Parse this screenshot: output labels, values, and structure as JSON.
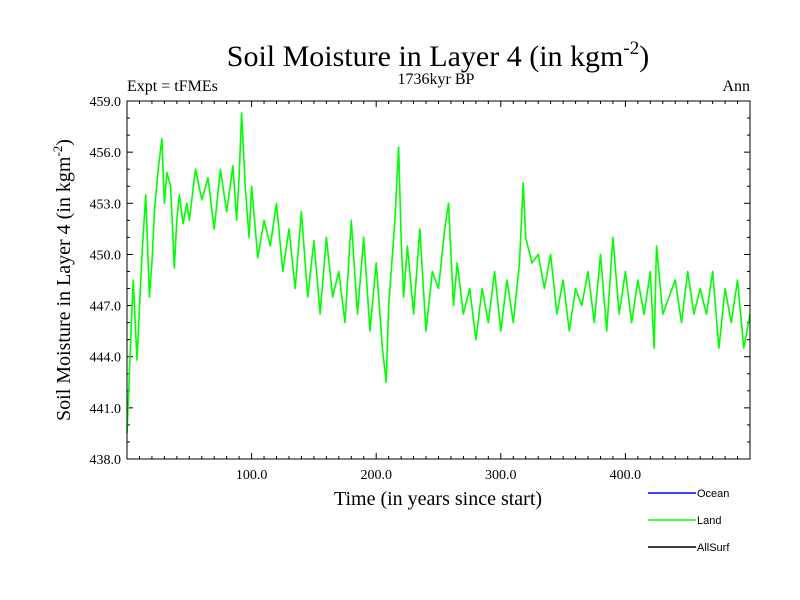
{
  "chart_data": {
    "type": "line",
    "title": "Soil Moisture in Layer 4 (in kgm",
    "title_sup": "-2",
    "title_end": ")",
    "subtitle": "1736kyr BP",
    "left_label": "Expt = tFMEs",
    "right_label": "Ann",
    "xlabel": "Time (in years since start)",
    "ylabel": "Soil Moisture in Layer 4 (in kgm",
    "ylabel_sup": "-2",
    "ylabel_end": ")",
    "xlim": [
      0,
      500
    ],
    "ylim": [
      438,
      459
    ],
    "x_ticks": [
      100,
      200,
      300,
      400
    ],
    "x_tick_labels": [
      "100.0",
      "200.0",
      "300.0",
      "400.0"
    ],
    "y_ticks": [
      438,
      441,
      444,
      447,
      450,
      453,
      456,
      459
    ],
    "y_tick_labels": [
      "438.0",
      "441.0",
      "444.0",
      "447.0",
      "450.0",
      "453.0",
      "456.0",
      "459.0"
    ],
    "legend": [
      {
        "name": "Ocean",
        "color": "#0000ff"
      },
      {
        "name": "Land",
        "color": "#00ff00"
      },
      {
        "name": "AllSurf",
        "color": "#000000"
      }
    ],
    "series": [
      {
        "name": "Land",
        "color": "#00ff00",
        "x": [
          0,
          3,
          5,
          8,
          12,
          15,
          18,
          20,
          22,
          25,
          28,
          30,
          32,
          35,
          38,
          40,
          42,
          45,
          48,
          50,
          55,
          60,
          65,
          70,
          75,
          80,
          85,
          88,
          90,
          92,
          95,
          98,
          100,
          105,
          110,
          115,
          120,
          125,
          130,
          135,
          140,
          145,
          150,
          155,
          160,
          165,
          170,
          175,
          180,
          185,
          190,
          195,
          200,
          205,
          208,
          210,
          215,
          218,
          220,
          222,
          225,
          230,
          235,
          240,
          245,
          250,
          255,
          258,
          262,
          265,
          270,
          275,
          280,
          285,
          290,
          295,
          300,
          305,
          310,
          315,
          318,
          320,
          325,
          330,
          335,
          340,
          345,
          350,
          355,
          360,
          365,
          370,
          375,
          380,
          385,
          390,
          395,
          400,
          405,
          410,
          415,
          420,
          423,
          425,
          430,
          435,
          440,
          445,
          450,
          455,
          460,
          465,
          470,
          475,
          480,
          485,
          490,
          495,
          500
        ],
        "values": [
          439.5,
          445.0,
          448.5,
          443.8,
          450.0,
          453.5,
          447.5,
          449.5,
          452.5,
          455.0,
          456.8,
          453.0,
          454.8,
          454.0,
          449.2,
          452.0,
          453.5,
          451.8,
          453.0,
          452.0,
          455.0,
          453.2,
          454.5,
          451.5,
          455.0,
          452.5,
          455.2,
          452.0,
          454.5,
          458.3,
          453.8,
          451.0,
          454.0,
          449.8,
          452.0,
          450.5,
          453.0,
          449.0,
          451.5,
          448.0,
          452.5,
          447.5,
          450.8,
          446.5,
          451.0,
          447.5,
          449.0,
          446.0,
          452.0,
          446.5,
          451.0,
          445.5,
          449.5,
          444.5,
          442.5,
          447.0,
          452.0,
          456.3,
          451.0,
          447.5,
          450.5,
          446.5,
          451.5,
          445.5,
          449.0,
          448.0,
          451.5,
          453.0,
          447.0,
          449.5,
          446.5,
          448.0,
          445.0,
          448.0,
          446.0,
          449.0,
          445.5,
          448.5,
          446.0,
          449.5,
          454.2,
          451.0,
          449.5,
          450.0,
          448.0,
          450.0,
          446.5,
          448.5,
          445.5,
          448.0,
          447.0,
          449.0,
          446.0,
          450.0,
          445.5,
          451.0,
          446.5,
          449.0,
          446.0,
          448.5,
          446.5,
          449.0,
          444.5,
          450.5,
          446.5,
          447.5,
          448.5,
          446.0,
          449.0,
          446.5,
          448.0,
          446.5,
          449.0,
          444.5,
          448.0,
          446.0,
          448.5,
          444.5,
          446.5
        ]
      }
    ]
  }
}
